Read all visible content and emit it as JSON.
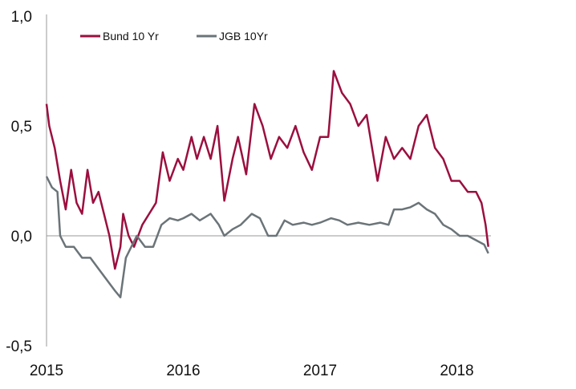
{
  "chart_data": {
    "type": "line",
    "title": "",
    "xlabel": "",
    "ylabel": "",
    "ylim": [
      -0.5,
      1.0
    ],
    "xlim": [
      2015.0,
      2018.25
    ],
    "y_ticks": [
      1.0,
      0.5,
      0.0,
      -0.5
    ],
    "y_tick_labels": [
      "1,0",
      "0,5",
      "0,0",
      "-0,5"
    ],
    "x_ticks": [
      2015,
      2016,
      2017,
      2018
    ],
    "x_tick_labels": [
      "2015",
      "2016",
      "2017",
      "2018"
    ],
    "grid": false,
    "legend_position": "top-left",
    "series": [
      {
        "name": "Bund 10 Yr",
        "color": "#9b0f3f",
        "x": [
          2015.0,
          2015.02,
          2015.06,
          2015.1,
          2015.14,
          2015.18,
          2015.22,
          2015.26,
          2015.3,
          2015.34,
          2015.38,
          2015.42,
          2015.46,
          2015.5,
          2015.54,
          2015.56,
          2015.6,
          2015.64,
          2015.7,
          2015.75,
          2015.8,
          2015.85,
          2015.9,
          2015.96,
          2016.0,
          2016.06,
          2016.1,
          2016.15,
          2016.2,
          2016.25,
          2016.3,
          2016.36,
          2016.4,
          2016.46,
          2016.52,
          2016.58,
          2016.64,
          2016.7,
          2016.76,
          2016.82,
          2016.88,
          2016.94,
          2017.0,
          2017.06,
          2017.1,
          2017.16,
          2017.22,
          2017.28,
          2017.34,
          2017.38,
          2017.42,
          2017.48,
          2017.54,
          2017.6,
          2017.66,
          2017.72,
          2017.78,
          2017.84,
          2017.9,
          2017.96,
          2018.02,
          2018.08,
          2018.14,
          2018.18,
          2018.21,
          2018.23
        ],
        "y": [
          0.6,
          0.5,
          0.4,
          0.25,
          0.12,
          0.3,
          0.15,
          0.1,
          0.3,
          0.15,
          0.2,
          0.1,
          0.0,
          -0.15,
          -0.05,
          0.1,
          0.0,
          -0.05,
          0.05,
          0.1,
          0.15,
          0.38,
          0.25,
          0.35,
          0.3,
          0.45,
          0.35,
          0.45,
          0.35,
          0.5,
          0.16,
          0.35,
          0.45,
          0.28,
          0.6,
          0.5,
          0.35,
          0.45,
          0.4,
          0.5,
          0.38,
          0.3,
          0.45,
          0.45,
          0.75,
          0.65,
          0.6,
          0.5,
          0.55,
          0.4,
          0.25,
          0.45,
          0.35,
          0.4,
          0.35,
          0.5,
          0.55,
          0.4,
          0.35,
          0.25,
          0.25,
          0.2,
          0.2,
          0.15,
          0.05,
          -0.05
        ]
      },
      {
        "name": "JGB 10Yr",
        "color": "#6b7478",
        "x": [
          2015.0,
          2015.04,
          2015.08,
          2015.1,
          2015.14,
          2015.2,
          2015.26,
          2015.32,
          2015.38,
          2015.44,
          2015.5,
          2015.54,
          2015.58,
          2015.62,
          2015.66,
          2015.72,
          2015.78,
          2015.84,
          2015.9,
          2015.96,
          2016.0,
          2016.06,
          2016.12,
          2016.2,
          2016.26,
          2016.3,
          2016.36,
          2016.42,
          2016.5,
          2016.56,
          2016.62,
          2016.68,
          2016.74,
          2016.8,
          2016.88,
          2016.94,
          2017.0,
          2017.08,
          2017.14,
          2017.2,
          2017.28,
          2017.36,
          2017.44,
          2017.5,
          2017.54,
          2017.6,
          2017.66,
          2017.72,
          2017.78,
          2017.84,
          2017.9,
          2017.96,
          2018.02,
          2018.08,
          2018.14,
          2018.2,
          2018.23
        ],
        "y": [
          0.27,
          0.22,
          0.2,
          0.0,
          -0.05,
          -0.05,
          -0.1,
          -0.1,
          -0.15,
          -0.2,
          -0.25,
          -0.28,
          -0.1,
          -0.05,
          0.0,
          -0.05,
          -0.05,
          0.05,
          0.08,
          0.07,
          0.08,
          0.1,
          0.07,
          0.1,
          0.05,
          0.0,
          0.03,
          0.05,
          0.1,
          0.08,
          0.0,
          0.0,
          0.07,
          0.05,
          0.06,
          0.05,
          0.06,
          0.08,
          0.07,
          0.05,
          0.06,
          0.05,
          0.06,
          0.05,
          0.12,
          0.12,
          0.13,
          0.15,
          0.12,
          0.1,
          0.05,
          0.03,
          0.0,
          0.0,
          -0.02,
          -0.04,
          -0.08
        ]
      }
    ]
  }
}
